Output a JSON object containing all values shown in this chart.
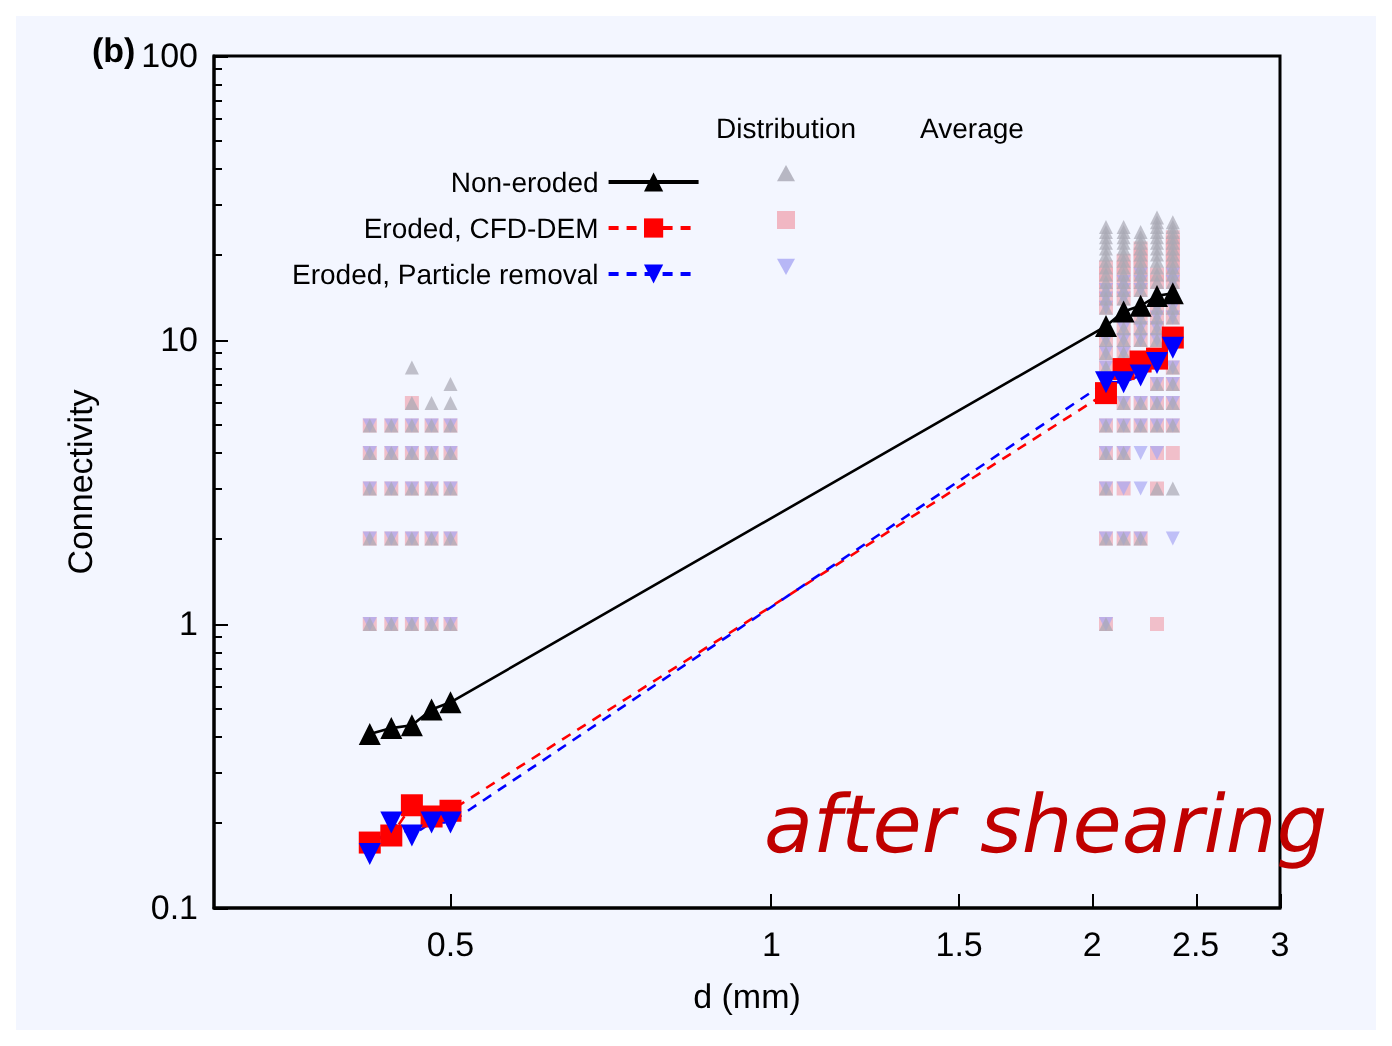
{
  "chart_data": {
    "type": "scatter",
    "xlabel": "d (mm)",
    "ylabel": "Connectivity",
    "log": "xy",
    "grid": false,
    "legend": "top",
    "xlim": [
      0.3,
      3
    ],
    "xticks": [
      0.5,
      1,
      1.5,
      2,
      2.5,
      3
    ],
    "ylim": [
      0.1,
      100
    ],
    "yticks": [
      0.1,
      1,
      10,
      100
    ],
    "annotations": [
      "(b)",
      "Distribution",
      "Average",
      "after shearing"
    ],
    "series": [
      {
        "type": "scatter",
        "color": "#a8a8b4",
        "marker": "triangle",
        "x": [
          0.42,
          0.42,
          0.42,
          0.42,
          0.42,
          0.44,
          0.44,
          0.44,
          0.44,
          0.44,
          0.46,
          0.46,
          0.46,
          0.46,
          0.46,
          0.46,
          0.46,
          0.48,
          0.48,
          0.48,
          0.48,
          0.48,
          0.48,
          0.5,
          0.5,
          0.5,
          0.5,
          0.5,
          0.5,
          0.5,
          2.06,
          2.06,
          2.06,
          2.06,
          2.06,
          2.06,
          2.06,
          2.06,
          2.06,
          2.06,
          2.06,
          2.06,
          2.06,
          2.06,
          2.06,
          2.06,
          2.06,
          2.06,
          2.06,
          2.06,
          2.06,
          2.14,
          2.14,
          2.14,
          2.14,
          2.14,
          2.14,
          2.14,
          2.14,
          2.14,
          2.14,
          2.14,
          2.14,
          2.14,
          2.14,
          2.14,
          2.14,
          2.14,
          2.14,
          2.14,
          2.22,
          2.22,
          2.22,
          2.22,
          2.22,
          2.22,
          2.22,
          2.22,
          2.22,
          2.22,
          2.22,
          2.22,
          2.22,
          2.22,
          2.22,
          2.22,
          2.3,
          2.3,
          2.3,
          2.3,
          2.3,
          2.3,
          2.3,
          2.3,
          2.3,
          2.3,
          2.3,
          2.3,
          2.3,
          2.3,
          2.3,
          2.3,
          2.3,
          2.3,
          2.3,
          2.3,
          2.38,
          2.38,
          2.38,
          2.38,
          2.38,
          2.38,
          2.38,
          2.38,
          2.38,
          2.38,
          2.38,
          2.38,
          2.38,
          2.38,
          2.38,
          2.38,
          2.38,
          2.38
        ],
        "values": [
          1,
          2,
          3,
          4,
          5,
          1,
          2,
          3,
          4,
          5,
          1,
          2,
          3,
          4,
          5,
          6,
          8,
          1,
          2,
          3,
          4,
          5,
          6,
          1,
          2,
          3,
          4,
          5,
          6,
          7,
          1,
          2,
          3,
          4,
          5,
          8,
          9,
          10,
          13,
          14,
          15,
          16,
          17,
          18,
          19,
          20,
          21,
          22,
          23,
          24,
          25,
          2,
          4,
          5,
          6,
          9,
          10,
          11,
          14,
          15,
          16,
          17,
          18,
          19,
          20,
          21,
          22,
          23,
          24,
          25,
          2,
          5,
          6,
          10,
          11,
          12,
          15,
          16,
          17,
          18,
          19,
          20,
          21,
          22,
          23,
          24,
          3,
          5,
          6,
          7,
          10,
          11,
          12,
          13,
          16,
          17,
          18,
          19,
          20,
          21,
          22,
          23,
          24,
          25,
          26,
          27,
          3,
          5,
          6,
          7,
          8,
          12,
          13,
          16,
          17,
          18,
          19,
          20,
          21,
          22,
          23,
          24,
          25,
          26
        ]
      },
      {
        "type": "scatter",
        "color": "#f0a8b4",
        "marker": "square",
        "x": [
          0.42,
          0.42,
          0.42,
          0.42,
          0.42,
          0.44,
          0.44,
          0.44,
          0.44,
          0.44,
          0.46,
          0.46,
          0.46,
          0.46,
          0.46,
          0.46,
          0.48,
          0.48,
          0.48,
          0.48,
          0.48,
          0.5,
          0.5,
          0.5,
          0.5,
          0.5,
          2.06,
          2.06,
          2.06,
          2.06,
          2.06,
          2.06,
          2.06,
          2.06,
          2.06,
          2.06,
          2.06,
          2.06,
          2.06,
          2.06,
          2.14,
          2.14,
          2.14,
          2.14,
          2.14,
          2.14,
          2.14,
          2.14,
          2.14,
          2.14,
          2.14,
          2.14,
          2.14,
          2.14,
          2.22,
          2.22,
          2.22,
          2.22,
          2.22,
          2.22,
          2.22,
          2.22,
          2.22,
          2.22,
          2.22,
          2.22,
          2.22,
          2.3,
          2.3,
          2.3,
          2.3,
          2.3,
          2.3,
          2.3,
          2.3,
          2.3,
          2.3,
          2.3,
          2.3,
          2.38,
          2.38,
          2.38,
          2.38,
          2.38,
          2.38,
          2.38,
          2.38,
          2.38,
          2.38,
          2.38,
          2.38,
          2.38,
          2.38,
          2.38
        ],
        "values": [
          1,
          2,
          3,
          4,
          5,
          1,
          2,
          3,
          4,
          5,
          1,
          2,
          3,
          4,
          5,
          6,
          1,
          2,
          3,
          4,
          5,
          1,
          2,
          3,
          4,
          5,
          1,
          2,
          3,
          4,
          5,
          8,
          9,
          10,
          13,
          14,
          15,
          16,
          17,
          18,
          2,
          3,
          4,
          5,
          6,
          9,
          10,
          11,
          14,
          15,
          16,
          17,
          18,
          19,
          2,
          5,
          6,
          10,
          11,
          12,
          15,
          16,
          17,
          18,
          19,
          20,
          21,
          1,
          3,
          4,
          5,
          6,
          7,
          10,
          11,
          12,
          13,
          16,
          17,
          4,
          5,
          6,
          7,
          8,
          12,
          13,
          16,
          17,
          18,
          19,
          20,
          21,
          22,
          23
        ]
      },
      {
        "type": "scatter",
        "color": "#a8a8f4",
        "marker": "triangle-down",
        "x": [
          0.42,
          0.42,
          0.42,
          0.42,
          0.42,
          0.44,
          0.44,
          0.44,
          0.44,
          0.44,
          0.46,
          0.46,
          0.46,
          0.46,
          0.46,
          0.48,
          0.48,
          0.48,
          0.48,
          0.48,
          0.5,
          0.5,
          0.5,
          0.5,
          0.5,
          2.06,
          2.06,
          2.06,
          2.06,
          2.06,
          2.06,
          2.06,
          2.06,
          2.06,
          2.06,
          2.06,
          2.14,
          2.14,
          2.14,
          2.14,
          2.14,
          2.14,
          2.14,
          2.14,
          2.14,
          2.14,
          2.14,
          2.22,
          2.22,
          2.22,
          2.22,
          2.22,
          2.22,
          2.22,
          2.22,
          2.22,
          2.22,
          2.22,
          2.3,
          2.3,
          2.3,
          2.3,
          2.3,
          2.3,
          2.3,
          2.3,
          2.38,
          2.38,
          2.38,
          2.38,
          2.38,
          2.38,
          2.38,
          2.38,
          2.38
        ],
        "values": [
          1,
          2,
          3,
          4,
          5,
          1,
          2,
          3,
          4,
          5,
          1,
          2,
          3,
          4,
          5,
          1,
          2,
          3,
          4,
          5,
          1,
          2,
          3,
          4,
          5,
          1,
          2,
          3,
          4,
          5,
          8,
          9,
          10,
          13,
          14,
          15,
          2,
          3,
          4,
          5,
          6,
          9,
          10,
          11,
          14,
          15,
          16,
          2,
          3,
          4,
          5,
          6,
          10,
          11,
          12,
          15,
          16,
          17,
          4,
          5,
          6,
          7,
          10,
          11,
          12,
          13,
          2,
          5,
          6,
          7,
          8,
          12,
          13,
          16,
          17
        ]
      },
      {
        "type": "line",
        "name": "Non-eroded",
        "color": "#000000",
        "marker": "triangle",
        "line_style": "solid",
        "x": [
          0.42,
          0.44,
          0.46,
          0.48,
          0.5,
          2.06,
          2.14,
          2.22,
          2.3,
          2.38
        ],
        "values": [
          0.41,
          0.43,
          0.44,
          0.5,
          0.53,
          11.2,
          12.6,
          13.2,
          14.3,
          14.6
        ]
      },
      {
        "type": "line",
        "name": "Eroded, CFD-DEM",
        "color": "#ff0000",
        "marker": "square",
        "line_style": "dashed",
        "x": [
          0.42,
          0.44,
          0.46,
          0.48,
          0.5,
          2.06,
          2.14,
          2.22,
          2.3,
          2.38
        ],
        "values": [
          0.17,
          0.18,
          0.23,
          0.21,
          0.22,
          6.5,
          7.9,
          8.4,
          8.6,
          10.2
        ]
      },
      {
        "type": "line",
        "name": "Eroded, Particle removal",
        "color": "#0000ff",
        "marker": "triangle-down",
        "line_style": "dashed",
        "x": [
          0.42,
          0.44,
          0.46,
          0.48,
          0.5,
          2.06,
          2.14,
          2.22,
          2.3,
          2.38
        ],
        "values": [
          0.155,
          0.2,
          0.18,
          0.2,
          0.2,
          7.1,
          7.1,
          7.5,
          8.3,
          9.4
        ]
      }
    ]
  }
}
